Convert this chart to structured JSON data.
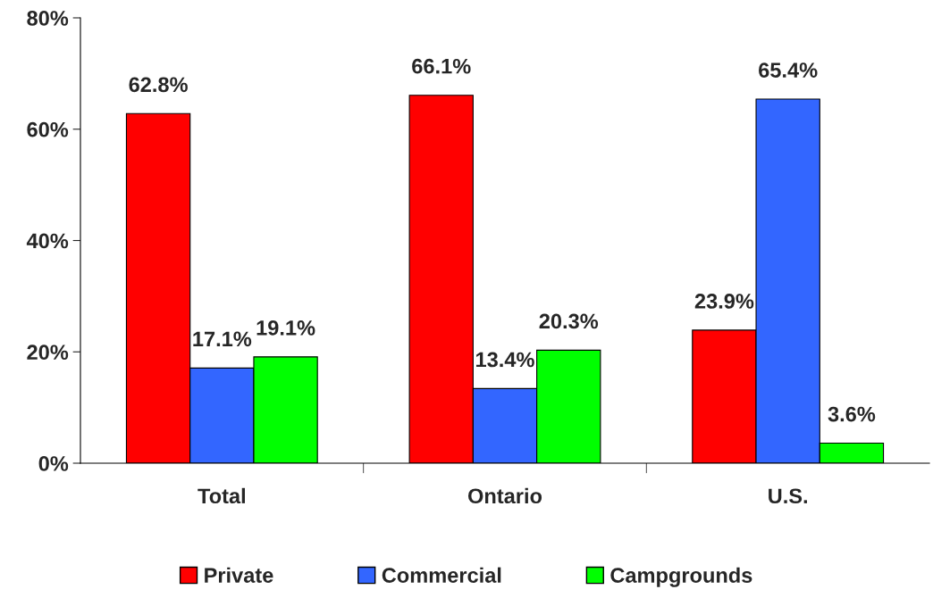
{
  "chart_data": {
    "type": "bar",
    "categories": [
      "Total",
      "Ontario",
      "U.S."
    ],
    "series": [
      {
        "name": "Private",
        "color": "#ff0000",
        "values": [
          62.8,
          66.1,
          23.9
        ],
        "value_labels": [
          "62.8%",
          "66.1%",
          "23.9%"
        ]
      },
      {
        "name": "Commercial",
        "color": "#3366ff",
        "values": [
          17.1,
          13.4,
          65.4
        ],
        "value_labels": [
          "17.1%",
          "13.4%",
          "65.4%"
        ]
      },
      {
        "name": "Campgrounds",
        "color": "#00ff00",
        "values": [
          19.1,
          20.3,
          3.6
        ],
        "value_labels": [
          "19.1%",
          "20.3%",
          "3.6%"
        ]
      }
    ],
    "ylim": [
      0,
      80
    ],
    "yticks": [
      {
        "value": 0,
        "label": "0%"
      },
      {
        "value": 20,
        "label": "20%"
      },
      {
        "value": 40,
        "label": "40%"
      },
      {
        "value": 60,
        "label": "60%"
      },
      {
        "value": 80,
        "label": "80%"
      }
    ],
    "grid": false,
    "legend": "bottom"
  }
}
